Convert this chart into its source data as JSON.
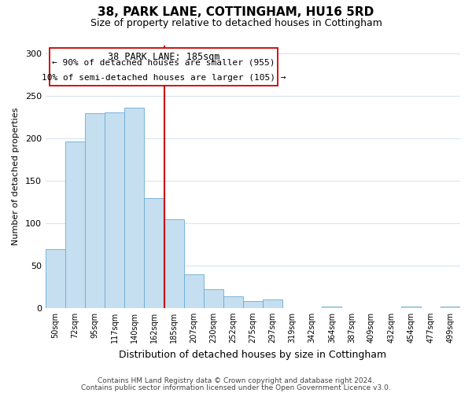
{
  "title": "38, PARK LANE, COTTINGHAM, HU16 5RD",
  "subtitle": "Size of property relative to detached houses in Cottingham",
  "xlabel": "Distribution of detached houses by size in Cottingham",
  "ylabel": "Number of detached properties",
  "bin_labels": [
    "50sqm",
    "72sqm",
    "95sqm",
    "117sqm",
    "140sqm",
    "162sqm",
    "185sqm",
    "207sqm",
    "230sqm",
    "252sqm",
    "275sqm",
    "297sqm",
    "319sqm",
    "342sqm",
    "364sqm",
    "387sqm",
    "409sqm",
    "432sqm",
    "454sqm",
    "477sqm",
    "499sqm"
  ],
  "bar_values": [
    69,
    196,
    230,
    231,
    236,
    130,
    105,
    40,
    22,
    14,
    8,
    10,
    0,
    0,
    2,
    0,
    0,
    0,
    2,
    0,
    2
  ],
  "bar_color": "#c5dff0",
  "bar_edge_color": "#6aaad4",
  "subject_line_index": 6,
  "subject_label": "38 PARK LANE: 185sqm",
  "annotation_line1": "← 90% of detached houses are smaller (955)",
  "annotation_line2": "10% of semi-detached houses are larger (105) →",
  "annotation_box_edge": "#cc0000",
  "subject_line_color": "#cc0000",
  "ylim": [
    0,
    310
  ],
  "yticks": [
    0,
    50,
    100,
    150,
    200,
    250,
    300
  ],
  "grid_color": "#d8e4f0",
  "footer1": "Contains HM Land Registry data © Crown copyright and database right 2024.",
  "footer2": "Contains public sector information licensed under the Open Government Licence v3.0."
}
